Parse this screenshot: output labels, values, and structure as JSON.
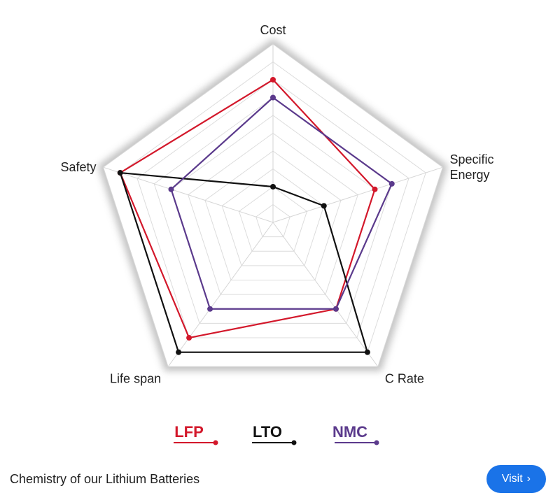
{
  "chart_data": {
    "type": "radar",
    "axes": [
      "Cost",
      "Specific Energy",
      "C Rate",
      "Life span",
      "Safety"
    ],
    "axis_label_lines": [
      [
        "Cost"
      ],
      [
        "Specific",
        "Energy"
      ],
      [
        "C Rate"
      ],
      [
        "Life span"
      ],
      [
        "Safety"
      ]
    ],
    "range": [
      0,
      10
    ],
    "rings": 10,
    "series": [
      {
        "name": "LFP",
        "color": "#d3182b",
        "values": [
          8,
          6,
          6,
          8,
          9
        ]
      },
      {
        "name": "LTO",
        "color": "#111111",
        "values": [
          2,
          3,
          9,
          9,
          9
        ]
      },
      {
        "name": "NMC",
        "color": "#5b3a8c",
        "values": [
          7,
          7,
          6,
          6,
          6
        ]
      }
    ],
    "legend_position": "bottom"
  },
  "caption": {
    "text": "Chemistry of our Lithium Batteries"
  },
  "visit_button": {
    "label": "Visit",
    "icon": "chevron-right-icon"
  }
}
